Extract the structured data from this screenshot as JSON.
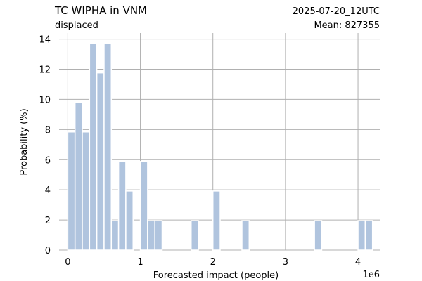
{
  "header": {
    "title": "TC WIPHA in VNM",
    "subtitle": "displaced",
    "date": "2025-07-20_12UTC",
    "mean_text": "Mean: 827355"
  },
  "colors": {
    "bar": "#b0c4de",
    "date": "#ff0000",
    "grid": "#b0b0b0"
  },
  "chart_data": {
    "type": "bar",
    "xlabel": "Forecasted impact (people)",
    "ylabel": "Probability (%)",
    "x_multiplier_label": "1e6",
    "xlim": [
      -0.12,
      4.3
    ],
    "ylim": [
      0,
      14.4
    ],
    "xticks": [
      0,
      1,
      2,
      3,
      4
    ],
    "yticks": [
      0,
      2,
      4,
      6,
      8,
      10,
      12,
      14
    ],
    "bin_width": 0.1,
    "grid": true,
    "bars": [
      {
        "x": 0.05,
        "value": 7.84
      },
      {
        "x": 0.15,
        "value": 9.8
      },
      {
        "x": 0.25,
        "value": 7.84
      },
      {
        "x": 0.35,
        "value": 13.73
      },
      {
        "x": 0.45,
        "value": 11.76
      },
      {
        "x": 0.55,
        "value": 13.73
      },
      {
        "x": 0.65,
        "value": 1.96
      },
      {
        "x": 0.75,
        "value": 5.88
      },
      {
        "x": 0.85,
        "value": 3.92
      },
      {
        "x": 1.05,
        "value": 5.88
      },
      {
        "x": 1.15,
        "value": 1.96
      },
      {
        "x": 1.25,
        "value": 1.96
      },
      {
        "x": 1.75,
        "value": 1.96
      },
      {
        "x": 2.05,
        "value": 3.92
      },
      {
        "x": 2.45,
        "value": 1.96
      },
      {
        "x": 3.45,
        "value": 1.96
      },
      {
        "x": 4.05,
        "value": 1.96
      },
      {
        "x": 4.15,
        "value": 1.96
      }
    ]
  }
}
